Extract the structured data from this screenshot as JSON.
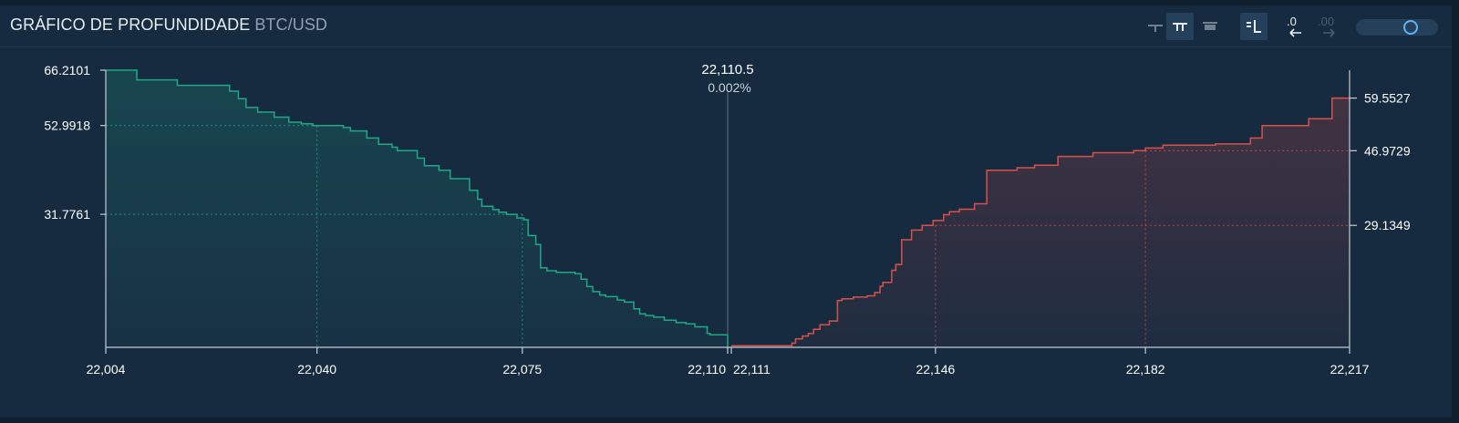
{
  "header": {
    "title": "GRÁFICO DE PROFUNDIDADE",
    "pair": "BTC/USD"
  },
  "toolbar": {
    "icons": [
      "layout-simple-icon",
      "layout-double-icon",
      "layout-box-icon",
      "order-book-icon",
      "decimals-decrease-icon",
      "decimals-increase-icon"
    ],
    "decimals_decrease_label": ".0",
    "decimals_increase_label": ".00",
    "zoom_slider_level": 0.72
  },
  "colors": {
    "bid": "#1ea886",
    "ask": "#d9504b",
    "axis": "#c3ccd5",
    "mid": "#5e6e7c",
    "text": "#ffffff"
  },
  "chart_data": {
    "type": "area",
    "title": "GRÁFICO DE PROFUNDIDADE",
    "mid_price": "22,110.5",
    "spread_percent": "0.002%",
    "x_ticks": [
      "22,004",
      "22,040",
      "22,075",
      "22,110",
      "22,111",
      "22,146",
      "22,182",
      "22,217"
    ],
    "left_y_ticks": [
      "66.2101",
      "52.9918",
      "31.7761"
    ],
    "right_y_ticks": [
      "59.5527",
      "46.9729",
      "29.1349"
    ],
    "xlim": [
      22004,
      22217
    ],
    "ylim": [
      0,
      66.2101
    ],
    "grid": false,
    "series": [
      {
        "side": "bid",
        "x": [
          22004.0,
          22009.3,
          22016.2,
          22025.1,
          22026.6,
          22027.9,
          22029.9,
          22032.7,
          22035.2,
          22037.3,
          22039.3,
          22044.5,
          22045.7,
          22048.5,
          22050.5,
          22052.8,
          22053.7,
          22057.1,
          22058.3,
          22060.8,
          22062.7,
          22066.0,
          22067.4,
          22068.1,
          22070.0,
          22071.0,
          22072.3,
          22074.1,
          22075.3,
          22076.0,
          22077.3,
          22078.1,
          22079.2,
          22080.8,
          22084.0,
          22085.0,
          22086.0,
          22087.0,
          22088.2,
          22089.2,
          22091.2,
          22092.4,
          22094.0,
          22095.0,
          22096.0,
          22097.4,
          22099.2,
          22101.2,
          22102.9,
          22104.4,
          22106.5,
          22107.0
        ],
        "y": [
          66.2101,
          63.9,
          62.6,
          61.2,
          59.4,
          57.3,
          56.2,
          55.0,
          53.8,
          53.4,
          52.9918,
          52.5,
          51.7,
          50.0,
          48.5,
          47.8,
          47.0,
          45.2,
          43.4,
          42.3,
          40.3,
          37.5,
          35.4,
          33.7,
          32.9,
          32.3,
          31.7761,
          30.9,
          30.5,
          26.7,
          24.6,
          19.0,
          18.3,
          17.9,
          17.6,
          16.3,
          14.5,
          13.3,
          12.5,
          12.1,
          11.3,
          10.8,
          9.2,
          8.0,
          7.6,
          7.2,
          6.5,
          5.9,
          5.6,
          4.9,
          3.3,
          3.0
        ]
      },
      {
        "side": "ask",
        "x": [
          22111.0,
          22121.4,
          22122.0,
          22123.2,
          22124.2,
          22125.1,
          22126.2,
          22127.8,
          22129.2,
          22130.0,
          22131.9,
          22134.3,
          22135.6,
          22136.5,
          22137.0,
          22138.5,
          22139.2,
          22140.2,
          22141.9,
          22143.7,
          22145.6,
          22147.4,
          22148.4,
          22150.1,
          22152.7,
          22154.8,
          22160.0,
          22163.0,
          22167.0,
          22173.0,
          22180.0,
          22182.0,
          22185.0,
          22194.0,
          22200.0,
          22202.0,
          22210.0,
          22213.5,
          22214.0,
          22217.0
        ],
        "y": [
          0.4,
          1.0,
          2.0,
          2.7,
          3.3,
          4.3,
          5.4,
          6.3,
          11.2,
          11.6,
          12.0,
          12.3,
          13.1,
          14.6,
          15.5,
          18.4,
          19.8,
          25.7,
          28.0,
          29.1349,
          30.3,
          31.7,
          32.4,
          33.0,
          34.3,
          42.3,
          42.9,
          43.5,
          45.6,
          46.5,
          46.9729,
          47.6,
          48.3,
          48.6,
          50.0,
          53.0,
          54.6,
          54.6,
          59.5527,
          59.5527
        ]
      }
    ]
  }
}
